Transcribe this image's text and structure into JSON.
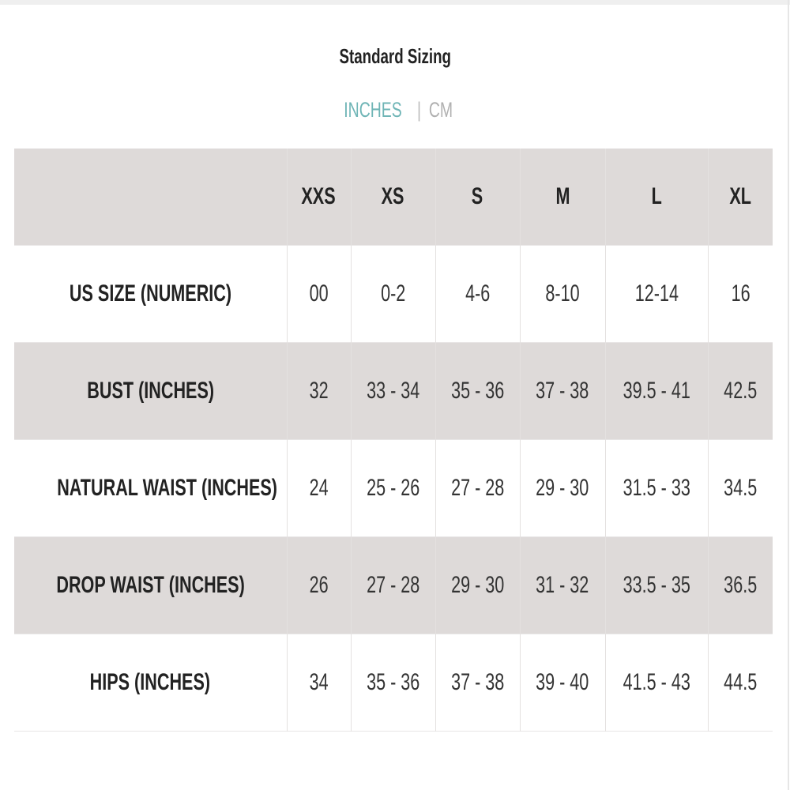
{
  "title": "Standard Sizing",
  "units": {
    "active": "INCHES",
    "separator": "|",
    "other": "CM",
    "active_color": "#6fb5b6"
  },
  "table": {
    "header": [
      "",
      "XXS",
      "XS",
      "S",
      "M",
      "L",
      "XL"
    ],
    "rows": [
      {
        "label": "US SIZE (NUMERIC)",
        "values": [
          "00",
          "0-2",
          "4-6",
          "8-10",
          "12-14",
          "16"
        ]
      },
      {
        "label": "BUST (INCHES)",
        "values": [
          "32",
          "33 - 34",
          "35 - 36",
          "37 - 38",
          "39.5 - 41",
          "42.5"
        ]
      },
      {
        "label": "NATURAL WAIST (INCHES)",
        "values": [
          "24",
          "25 - 26",
          "27 - 28",
          "29 - 30",
          "31.5 - 33",
          "34.5"
        ]
      },
      {
        "label": "DROP WAIST (INCHES)",
        "values": [
          "26",
          "27 - 28",
          "29 - 30",
          "31 - 32",
          "33.5 - 35",
          "36.5"
        ]
      },
      {
        "label": "HIPS (INCHES)",
        "values": [
          "34",
          "35 - 36",
          "37 - 38",
          "39 - 40",
          "41.5 - 43",
          "44.5"
        ]
      }
    ],
    "shaded_color": "#dedad9"
  }
}
